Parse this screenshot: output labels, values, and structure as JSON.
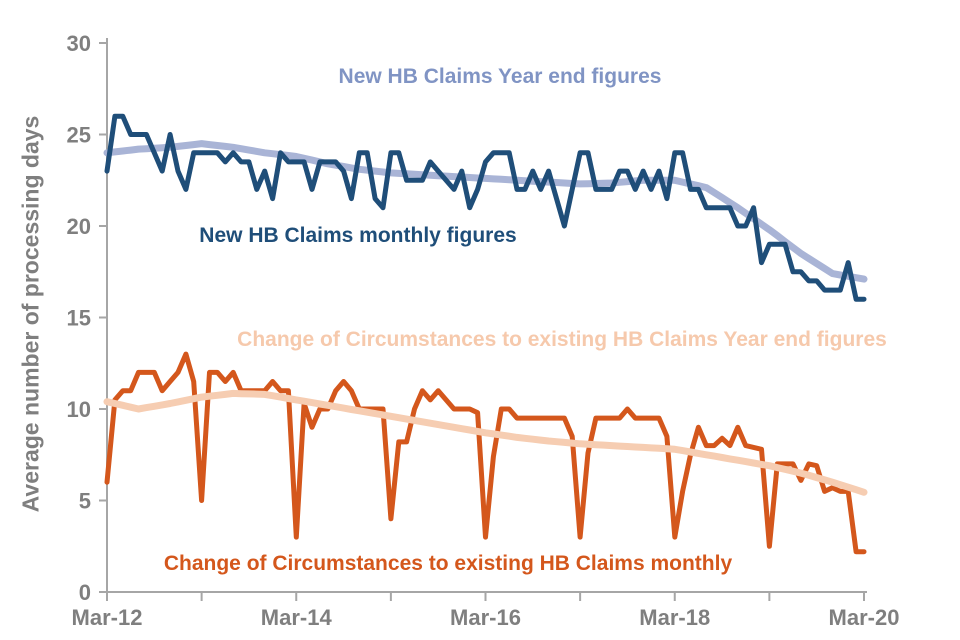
{
  "axis": {
    "line_color": "#a6a6a6",
    "tick_label_color": "#7f7f7f",
    "y_title_color": "#7f7f7f"
  },
  "chart_data": {
    "type": "line",
    "title": "",
    "xlabel": "",
    "ylabel": "Average number of processing days",
    "ylim": [
      0,
      30
    ],
    "y_ticks": [
      0,
      5,
      10,
      15,
      20,
      25,
      30
    ],
    "x_start": "Mar-12",
    "x_end": "Mar-20",
    "n_months": 97,
    "x_year_ticks": [
      "Mar-12",
      "Mar-13",
      "Mar-14",
      "Mar-15",
      "Mar-16",
      "Mar-17",
      "Mar-18",
      "Mar-19",
      "Mar-20"
    ],
    "x_tick_labels": [
      "Mar-12",
      "Mar-14",
      "Mar-16",
      "Mar-18",
      "Mar-20"
    ],
    "grid": false,
    "legend_position": "inline-annotations",
    "series": [
      {
        "name": "new-hb-year-end",
        "label": "New HB Claims Year end figures",
        "line_color": "#a9b4d6",
        "label_color": "#8094c4",
        "line_width": 7,
        "kind": "year-end-smooth",
        "anchor_step_months": 4,
        "anchors": [
          24.0,
          24.2,
          24.3,
          24.5,
          24.3,
          24.0,
          23.8,
          23.4,
          23.1,
          22.9,
          22.8,
          22.7,
          22.6,
          22.5,
          22.4,
          22.3,
          22.35,
          22.5,
          22.5,
          22.1,
          21.0,
          19.8,
          18.5,
          17.4,
          17.1
        ]
      },
      {
        "name": "new-hb-monthly",
        "label": "New HB Claims monthly figures",
        "line_color": "#1f4e79",
        "label_color": "#1f4e79",
        "line_width": 5,
        "kind": "monthly",
        "values": [
          23,
          26,
          26,
          25,
          25,
          25,
          24,
          23,
          25,
          23,
          22,
          24,
          24,
          24,
          24,
          23.5,
          24,
          23.5,
          23.5,
          22,
          23,
          21.5,
          24,
          23.5,
          23.5,
          23.5,
          22,
          23.5,
          23.5,
          23.5,
          23,
          21.5,
          24,
          24,
          21.5,
          21,
          24,
          24,
          22.5,
          22.5,
          22.5,
          23.5,
          23,
          22.5,
          22,
          23,
          21,
          22,
          23.5,
          24,
          24,
          24,
          22,
          22,
          23,
          22,
          23,
          21.5,
          20,
          22,
          24,
          24,
          22,
          22,
          22,
          23,
          23,
          22,
          23,
          22,
          23,
          21.5,
          24,
          24,
          22,
          22,
          21,
          21,
          21,
          21,
          20,
          20,
          21,
          18,
          19,
          19,
          19,
          17.5,
          17.5,
          17,
          17,
          16.5,
          16.5,
          16.5,
          18,
          16,
          16
        ]
      },
      {
        "name": "coc-monthly",
        "label": "Change of Circumstances to existing HB Claims monthly",
        "line_color": "#d4571c",
        "label_color": "#d4571c",
        "line_width": 5,
        "kind": "monthly",
        "values": [
          6,
          10.5,
          11,
          11,
          12,
          12,
          12,
          11,
          11.5,
          12,
          13,
          11.5,
          5,
          12,
          12,
          11.5,
          12,
          11,
          11,
          11,
          11,
          11.5,
          11,
          11,
          3,
          10.3,
          9,
          10,
          10,
          11,
          11.5,
          11,
          10,
          10,
          10,
          10,
          4,
          8.2,
          8.2,
          10,
          11,
          10.5,
          11,
          10.5,
          10,
          10,
          10,
          9.8,
          3,
          7.4,
          10,
          10,
          9.5,
          9.5,
          9.5,
          9.5,
          9.5,
          9.5,
          9.5,
          8.5,
          3,
          7.6,
          9.5,
          9.5,
          9.5,
          9.5,
          10,
          9.5,
          9.5,
          9.5,
          9.5,
          8.5,
          3,
          5.5,
          7.5,
          9,
          8,
          8,
          8.4,
          8,
          9,
          8,
          7.9,
          7.8,
          2.5,
          7,
          7,
          7,
          6.1,
          7,
          6.9,
          5.5,
          5.7,
          5.5,
          5.5,
          2.2,
          2.2
        ]
      },
      {
        "name": "coc-year-end",
        "label": "Change of Circumstances to existing HB Claims Year end figures",
        "line_color": "#f6cdb2",
        "label_color": "#f6c9ac",
        "line_width": 7,
        "kind": "year-end-smooth",
        "anchor_step_months": 4,
        "anchors": [
          10.4,
          10.0,
          10.3,
          10.65,
          10.85,
          10.8,
          10.5,
          10.2,
          9.9,
          9.6,
          9.3,
          9.0,
          8.7,
          8.45,
          8.25,
          8.1,
          8.0,
          7.9,
          7.8,
          7.5,
          7.2,
          6.9,
          6.5,
          6.0,
          5.45
        ]
      }
    ]
  }
}
